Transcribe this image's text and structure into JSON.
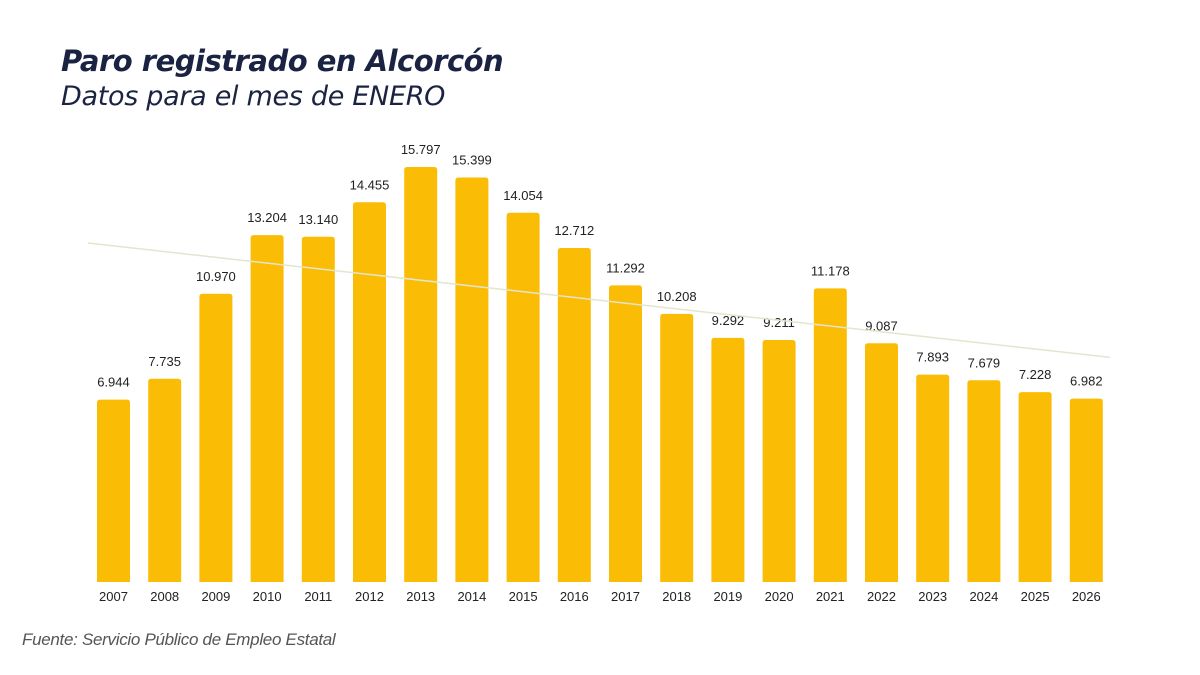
{
  "header": {
    "title": "Paro registrado en Alcorcón",
    "subtitle": "Datos para el mes de ENERO"
  },
  "footer": {
    "source": "Fuente: Servicio Público de Empleo Estatal"
  },
  "chart_data": {
    "type": "bar",
    "title": "Paro registrado en Alcorcón",
    "subtitle": "Datos para el mes de ENERO",
    "categories": [
      "2007",
      "2008",
      "2009",
      "2010",
      "2011",
      "2012",
      "2013",
      "2014",
      "2015",
      "2016",
      "2017",
      "2018",
      "2019",
      "2020",
      "2021",
      "2022",
      "2023",
      "2024",
      "2025",
      "2026"
    ],
    "values": [
      6944,
      7735,
      10970,
      13204,
      13140,
      14455,
      15797,
      15399,
      14054,
      12712,
      11292,
      10208,
      9292,
      9211,
      11178,
      9087,
      7893,
      7679,
      7228,
      6982
    ],
    "data_labels": [
      "6.944",
      "7.735",
      "10.970",
      "13.204",
      "13.140",
      "14.455",
      "15.797",
      "15.399",
      "14.054",
      "12.712",
      "11.292",
      "10.208",
      "9.292",
      "9.211",
      "11.178",
      "9.087",
      "7.893",
      "7.679",
      "7.228",
      "6.982"
    ],
    "xlabel": "",
    "ylabel": "",
    "grid": false,
    "y_axis_visible": false,
    "trendline": "linear",
    "colors": {
      "bar": "#FBBC05",
      "trendline": "#e2e6cf",
      "title": "#1b2342"
    }
  }
}
